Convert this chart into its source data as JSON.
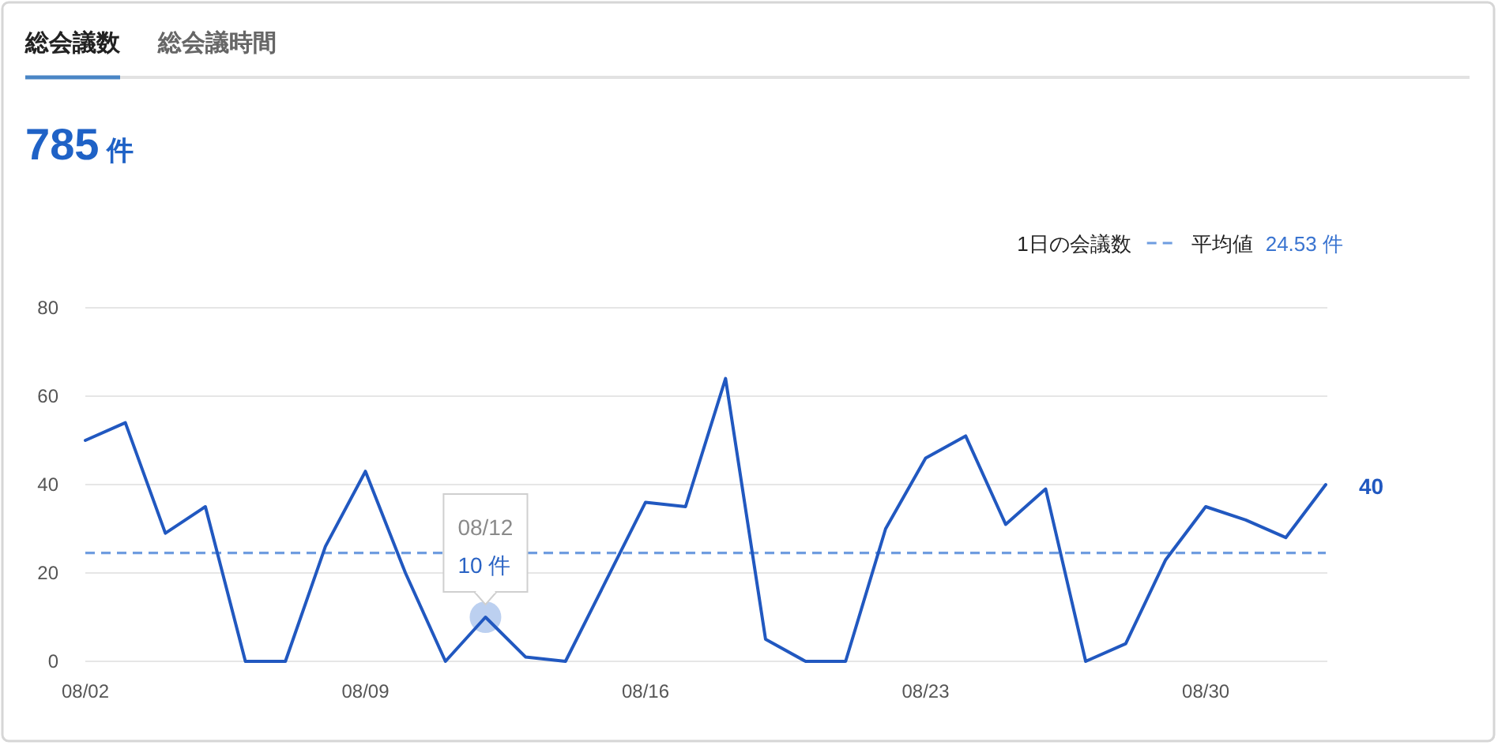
{
  "chart_data": {
    "type": "line",
    "title": "総会議数",
    "subtitle": "785 件",
    "annotations": [
      "総会議時間",
      "1日の会議数",
      "08/12",
      {
        "text": "10 件",
        "x": "--08-12",
        "y": 10
      }
    ],
    "x": [
      "--08-02",
      "--08-03",
      "--08-04",
      "--08-05",
      "--08-06",
      "--08-07",
      "--08-08",
      "--08-09",
      "--08-10",
      "--08-11",
      "--08-12",
      "--08-13",
      "--08-14",
      "--08-15",
      "--08-16",
      "--08-17",
      "--08-18",
      "--08-19",
      "--08-20",
      "--08-21",
      "--08-22",
      "--08-23",
      "--08-24",
      "--08-25",
      "--08-26",
      "--08-27",
      "--08-28",
      "--08-29",
      "--08-30",
      "--08-31",
      "--09-01",
      "--09-02"
    ],
    "series": [
      {
        "color": "#2158c0",
        "values": [
          50,
          54,
          29,
          35,
          0,
          0,
          26,
          43,
          20,
          0,
          10,
          1,
          0,
          18,
          36,
          35,
          64,
          5,
          0,
          0,
          30,
          46,
          51,
          31,
          39,
          0,
          4,
          23,
          35,
          32,
          28,
          40
        ],
        "value_labels": [
          null,
          null,
          null,
          null,
          null,
          null,
          null,
          null,
          null,
          null,
          null,
          null,
          null,
          null,
          null,
          null,
          null,
          null,
          null,
          null,
          null,
          null,
          null,
          null,
          null,
          null,
          null,
          null,
          null,
          null,
          null,
          "40"
        ]
      }
    ],
    "xlim": [
      "--08-02",
      "--09-02"
    ],
    "ylim": [
      0,
      80
    ],
    "xticks": [
      {
        "value": "--08-02",
        "label": "08/02"
      },
      {
        "value": "--08-09",
        "label": "08/09"
      },
      {
        "value": "--08-16",
        "label": "08/16"
      },
      {
        "value": "--08-23",
        "label": "08/23"
      },
      {
        "value": "--08-30",
        "label": "08/30"
      }
    ],
    "yticks": [
      0,
      20,
      40,
      60,
      80
    ],
    "ref_lines": [
      {
        "axis": "y",
        "value": 24.53,
        "label": "平均値 24.53 件",
        "color": "#6f9de0",
        "line_style": "dashed"
      }
    ],
    "grid": "y",
    "legend": "top right"
  }
}
